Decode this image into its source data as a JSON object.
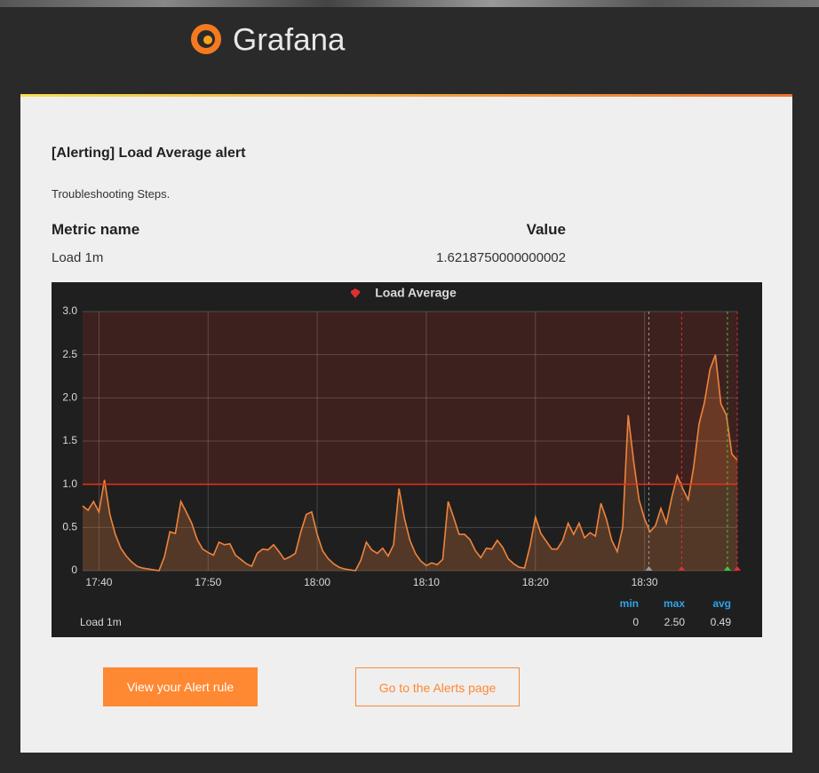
{
  "header": {
    "logo_text": "Grafana"
  },
  "email": {
    "title": "[Alerting] Load Average alert",
    "message": "Troubleshooting Steps.",
    "table": {
      "headers": [
        "Metric name",
        "Value"
      ],
      "rows": [
        [
          "Load 1m",
          "1.6218750000000002"
        ]
      ]
    },
    "buttons": [
      "View your Alert rule",
      "Go to the Alerts page"
    ]
  },
  "chart_data": {
    "type": "line",
    "title": "Load Average",
    "x": [
      "17:38:30",
      "17:39:00",
      "17:39:30",
      "17:40:00",
      "17:40:30",
      "17:41:00",
      "17:41:30",
      "17:42:00",
      "17:42:30",
      "17:43:00",
      "17:43:30",
      "17:44:00",
      "17:44:30",
      "17:45:00",
      "17:45:30",
      "17:46:00",
      "17:46:30",
      "17:47:00",
      "17:47:30",
      "17:48:00",
      "17:48:30",
      "17:49:00",
      "17:49:30",
      "17:50:00",
      "17:50:30",
      "17:51:00",
      "17:51:30",
      "17:52:00",
      "17:52:30",
      "17:53:00",
      "17:53:30",
      "17:54:00",
      "17:54:30",
      "17:55:00",
      "17:55:30",
      "17:56:00",
      "17:56:30",
      "17:57:00",
      "17:57:30",
      "17:58:00",
      "17:58:30",
      "17:59:00",
      "17:59:30",
      "18:00:00",
      "18:00:30",
      "18:01:00",
      "18:01:30",
      "18:02:00",
      "18:02:30",
      "18:03:00",
      "18:03:30",
      "18:04:00",
      "18:04:30",
      "18:05:00",
      "18:05:30",
      "18:06:00",
      "18:06:30",
      "18:07:00",
      "18:07:30",
      "18:08:00",
      "18:08:30",
      "18:09:00",
      "18:09:30",
      "18:10:00",
      "18:10:30",
      "18:11:00",
      "18:11:30",
      "18:12:00",
      "18:12:30",
      "18:13:00",
      "18:13:30",
      "18:14:00",
      "18:14:30",
      "18:15:00",
      "18:15:30",
      "18:16:00",
      "18:16:30",
      "18:17:00",
      "18:17:30",
      "18:18:00",
      "18:18:30",
      "18:19:00",
      "18:19:30",
      "18:20:00",
      "18:20:30",
      "18:21:00",
      "18:21:30",
      "18:22:00",
      "18:22:30",
      "18:23:00",
      "18:23:30",
      "18:24:00",
      "18:24:30",
      "18:25:00",
      "18:25:30",
      "18:26:00",
      "18:26:30",
      "18:27:00",
      "18:27:30",
      "18:28:00",
      "18:28:30",
      "18:29:00",
      "18:29:30",
      "18:30:00",
      "18:30:30",
      "18:31:00",
      "18:31:30",
      "18:32:00",
      "18:32:30",
      "18:33:00",
      "18:33:30",
      "18:34:00",
      "18:34:30",
      "18:35:00",
      "18:35:30",
      "18:36:00",
      "18:36:30",
      "18:37:00",
      "18:37:30",
      "18:38:00",
      "18:38:30"
    ],
    "series": [
      {
        "name": "Load 1m",
        "color": "#ef843c",
        "values": [
          0.75,
          0.7,
          0.8,
          0.68,
          1.05,
          0.65,
          0.42,
          0.26,
          0.17,
          0.1,
          0.05,
          0.03,
          0.02,
          0.01,
          0,
          0.16,
          0.45,
          0.43,
          0.8,
          0.68,
          0.55,
          0.36,
          0.25,
          0.21,
          0.18,
          0.33,
          0.3,
          0.31,
          0.18,
          0.13,
          0.08,
          0.05,
          0.2,
          0.25,
          0.24,
          0.3,
          0.22,
          0.13,
          0.16,
          0.2,
          0.45,
          0.65,
          0.68,
          0.42,
          0.23,
          0.14,
          0.08,
          0.04,
          0.02,
          0.01,
          0,
          0.12,
          0.33,
          0.24,
          0.2,
          0.26,
          0.17,
          0.3,
          0.95,
          0.6,
          0.35,
          0.2,
          0.11,
          0.06,
          0.09,
          0.07,
          0.13,
          0.8,
          0.62,
          0.42,
          0.42,
          0.36,
          0.23,
          0.15,
          0.26,
          0.25,
          0.35,
          0.27,
          0.14,
          0.08,
          0.04,
          0.03,
          0.28,
          0.62,
          0.43,
          0.34,
          0.25,
          0.25,
          0.35,
          0.55,
          0.42,
          0.55,
          0.38,
          0.44,
          0.4,
          0.78,
          0.6,
          0.35,
          0.22,
          0.5,
          1.8,
          1.27,
          0.82,
          0.6,
          0.45,
          0.52,
          0.72,
          0.55,
          0.85,
          1.1,
          0.95,
          0.82,
          1.2,
          1.7,
          1.95,
          2.33,
          2.5,
          1.93,
          1.8,
          1.35,
          1.28
        ],
        "stats": [
          0,
          2.5,
          0.49
        ],
        "stats_labels": [
          "0",
          "2.50",
          "0.49"
        ]
      }
    ],
    "legend_columns": [
      "min",
      "max",
      "avg"
    ],
    "xlim": [
      "17:38:30",
      "18:38:30"
    ],
    "xticks": [
      "17:40",
      "17:50",
      "18:00",
      "18:10",
      "18:20",
      "18:30"
    ],
    "ylim": [
      0,
      3
    ],
    "yticks": [
      0,
      0.5,
      {
        "value": 1,
        "label": "1.0"
      },
      1.5,
      {
        "value": 2,
        "label": "2.0"
      },
      2.5,
      {
        "value": 3,
        "label": "3.0"
      }
    ],
    "grid": true,
    "threshold": {
      "value": 1,
      "color": "#ed2e18"
    },
    "annotations": [
      {
        "x": "18:30:24",
        "color": "#999999"
      },
      {
        "x": "18:33:24",
        "color": "#e02f2f"
      },
      {
        "x": "18:37:36",
        "color": "#3ec73e"
      },
      {
        "x": "18:38:30",
        "color": "#e02f2f"
      }
    ]
  }
}
